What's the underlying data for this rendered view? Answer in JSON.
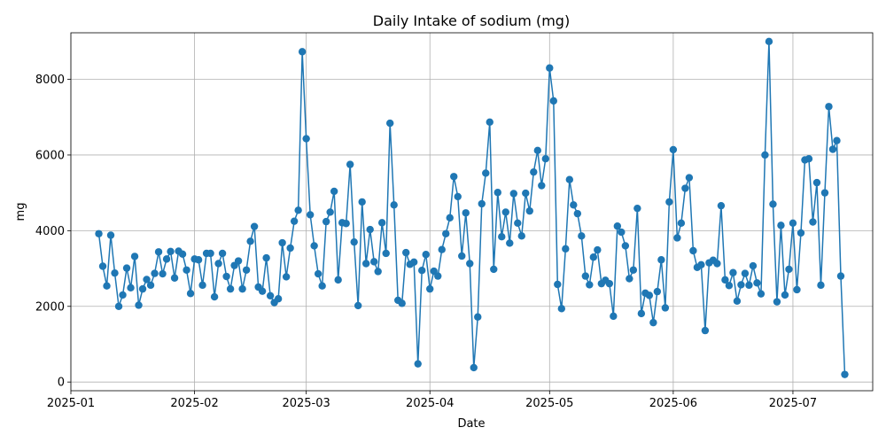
{
  "chart_data": {
    "type": "line",
    "title": "Daily Intake of sodium (mg)",
    "xlabel": "Date",
    "ylabel": "mg",
    "x_start": "2025-01-08",
    "x_step_days": 1,
    "xlim": [
      "2025-01-01",
      "2025-07-21"
    ],
    "ylim": [
      -230,
      9230
    ],
    "x_ticks": [
      "2025-01",
      "2025-02",
      "2025-03",
      "2025-04",
      "2025-05",
      "2025-06",
      "2025-07"
    ],
    "x_tick_dates": [
      "2025-01-01",
      "2025-02-01",
      "2025-03-01",
      "2025-04-01",
      "2025-05-01",
      "2025-06-01",
      "2025-07-01"
    ],
    "y_ticks": [
      0,
      2000,
      4000,
      6000,
      8000
    ],
    "grid": true,
    "series": [
      {
        "color": "#1f77b4",
        "marker": "circle",
        "values": [
          3920,
          3060,
          2540,
          3880,
          2880,
          2000,
          2300,
          3010,
          2490,
          3320,
          2030,
          2460,
          2710,
          2560,
          2870,
          3440,
          2860,
          3250,
          3450,
          2750,
          3460,
          3380,
          2960,
          2340,
          3250,
          3230,
          2560,
          3400,
          3400,
          2250,
          3130,
          3400,
          2790,
          2460,
          3080,
          3200,
          2460,
          2960,
          3720,
          4110,
          2510,
          2400,
          3280,
          2280,
          2100,
          2200,
          3680,
          2780,
          3540,
          4250,
          4540,
          8730,
          6430,
          4420,
          3600,
          2860,
          2540,
          4240,
          4490,
          5040,
          2700,
          4210,
          4190,
          5750,
          3700,
          2020,
          4760,
          3130,
          4030,
          3180,
          2920,
          4210,
          3400,
          6840,
          4680,
          2160,
          2080,
          3420,
          3110,
          3170,
          480,
          2950,
          3370,
          2460,
          2930,
          2800,
          3500,
          3920,
          4340,
          5430,
          4900,
          3330,
          4470,
          3130,
          380,
          1720,
          4710,
          5520,
          6870,
          2980,
          5010,
          3840,
          4490,
          3670,
          4980,
          4200,
          3860,
          4990,
          4520,
          5550,
          6120,
          5190,
          5900,
          8300,
          7430,
          2580,
          1940,
          3520,
          5350,
          4680,
          4450,
          3860,
          2800,
          2570,
          3300,
          3490,
          2600,
          2690,
          2600,
          1740,
          4120,
          3960,
          3600,
          2730,
          2960,
          4590,
          1810,
          2350,
          2290,
          1570,
          2390,
          3230,
          1960,
          4760,
          6140,
          3810,
          4200,
          5120,
          5400,
          3470,
          3030,
          3100,
          1360,
          3150,
          3220,
          3130,
          4660,
          2700,
          2550,
          2890,
          2140,
          2570,
          2870,
          2560,
          3070,
          2620,
          2330,
          6000,
          9000,
          4700,
          2120,
          4140,
          2300,
          2980,
          4200,
          2440,
          3940,
          5870,
          5900,
          4230,
          5270,
          2560,
          5000,
          7280,
          6150,
          6380,
          2800,
          200
        ]
      }
    ]
  }
}
